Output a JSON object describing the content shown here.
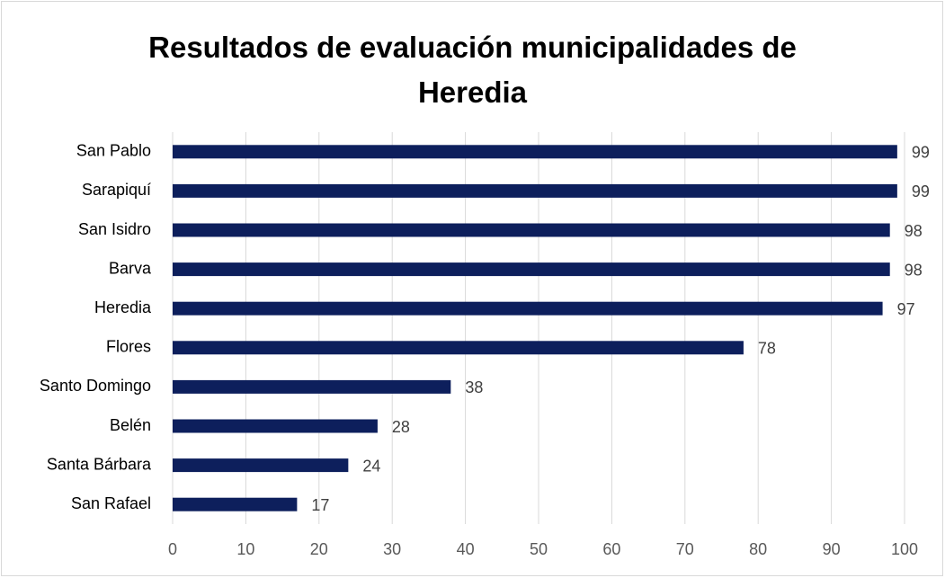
{
  "chart_data": {
    "type": "bar",
    "orientation": "horizontal",
    "title": "Resultados de evaluación municipalidades de Heredia",
    "categories": [
      "San Pablo",
      "Sarapiquí",
      "San Isidro",
      "Barva",
      "Heredia",
      "Flores",
      "Santo Domingo",
      "Belén",
      "Santa Bárbara",
      "San Rafael"
    ],
    "values": [
      99,
      99,
      98,
      98,
      97,
      78,
      38,
      28,
      24,
      17
    ],
    "color": "#0d1f5c",
    "xlim": [
      0,
      100
    ],
    "xticks": [
      0,
      10,
      20,
      30,
      40,
      50,
      60,
      70,
      80,
      90,
      100
    ],
    "grid": true
  }
}
